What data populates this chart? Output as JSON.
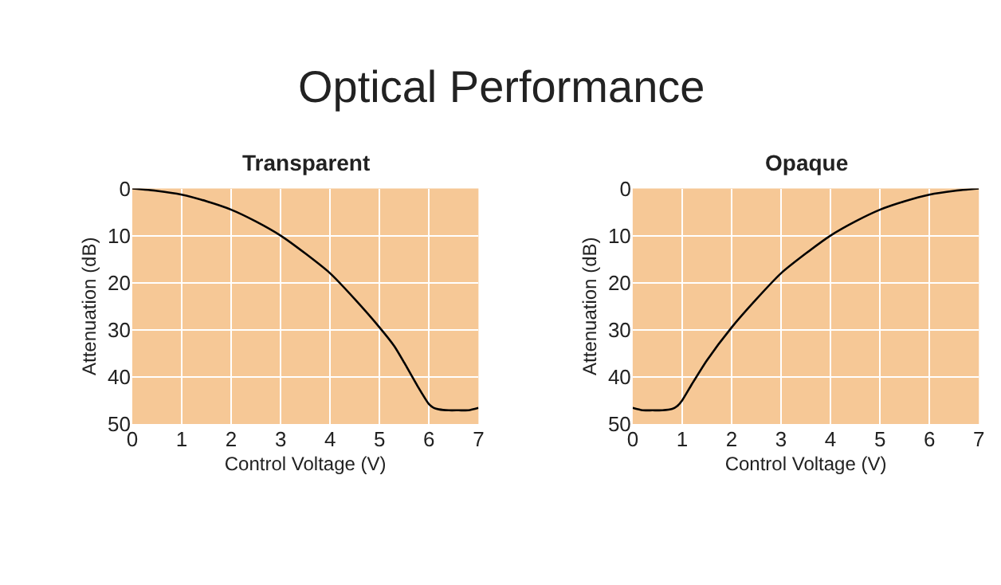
{
  "chart_data": [
    {
      "type": "line",
      "title": "Transparent",
      "annotations": [
        "Optical Performance"
      ],
      "xlabel": "Control Voltage (V)",
      "ylabel": "Attenuation (dB)",
      "series": [
        {
          "color": "#000000",
          "x": [
            0,
            0.5,
            1,
            1.5,
            2,
            2.5,
            3,
            3.5,
            4,
            4.5,
            5,
            5.3,
            5.5,
            5.8,
            6,
            6.1,
            6.2,
            6.4,
            6.6,
            6.8,
            7
          ],
          "values": [
            0,
            0.5,
            1.3,
            2.7,
            4.5,
            7,
            10,
            13.8,
            18,
            23.5,
            29.5,
            33.5,
            37,
            42.5,
            45.8,
            46.6,
            46.9,
            47.1,
            47.1,
            47.1,
            46.6
          ]
        }
      ],
      "xlim": [
        0,
        7
      ],
      "xticks": [
        0,
        1,
        2,
        3,
        4,
        5,
        6,
        7
      ],
      "ylim": [
        50,
        0
      ],
      "yticks": [
        0,
        10,
        20,
        30,
        40,
        50
      ],
      "grid": true,
      "marker": "none",
      "line_style": "solid"
    },
    {
      "type": "line",
      "title": "Opaque",
      "xlabel": "Control Voltage (V)",
      "ylabel": "Attenuation (dB)",
      "series": [
        {
          "color": "#000000",
          "x": [
            0,
            0.2,
            0.4,
            0.6,
            0.8,
            0.9,
            1,
            1.2,
            1.5,
            2,
            2.5,
            3,
            3.5,
            4,
            4.5,
            5,
            5.5,
            6,
            6.5,
            7
          ],
          "values": [
            46.6,
            47.1,
            47.1,
            47.1,
            46.8,
            46.2,
            45,
            41.5,
            36.5,
            29.5,
            23.5,
            18,
            13.8,
            10,
            7,
            4.5,
            2.7,
            1.3,
            0.5,
            0
          ]
        }
      ],
      "xlim": [
        0,
        7
      ],
      "xticks": [
        0,
        1,
        2,
        3,
        4,
        5,
        6,
        7
      ],
      "ylim": [
        50,
        0
      ],
      "yticks": [
        0,
        10,
        20,
        30,
        40,
        50
      ],
      "grid": true,
      "marker": "none",
      "line_style": "solid"
    }
  ]
}
